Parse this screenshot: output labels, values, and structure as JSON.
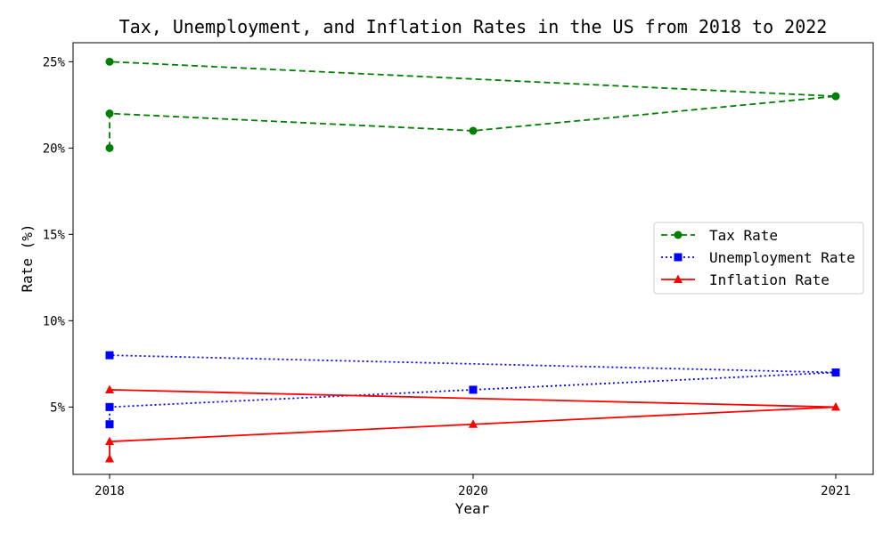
{
  "chart_data": {
    "type": "line",
    "title": "Tax, Unemployment, and Inflation Rates in the US from 2018 to 2022",
    "xlabel": "Year",
    "ylabel": "Rate (%)",
    "x_tick_labels": [
      {
        "value": 2018,
        "label": "2018"
      },
      {
        "value": 2020,
        "label": "2020"
      },
      {
        "value": 2021,
        "label": "2021"
      }
    ],
    "y_ticks": [
      5,
      10,
      15,
      20,
      25
    ],
    "y_tick_suffix": "%",
    "ylim": [
      1.1,
      26.1
    ],
    "x_positions": {
      "2018": 0,
      "2020": 1,
      "2021": 2
    },
    "grid": false,
    "legend_position": "center-right",
    "series": [
      {
        "name": "Tax Rate",
        "color": "#008000",
        "line_style": "dashed",
        "marker": "circle",
        "points": [
          {
            "x": 2018,
            "y": 20
          },
          {
            "x": 2018,
            "y": 22
          },
          {
            "x": 2020,
            "y": 21
          },
          {
            "x": 2021,
            "y": 23
          },
          {
            "x": 2018,
            "y": 25
          }
        ]
      },
      {
        "name": "Unemployment Rate",
        "color": "#0000ff",
        "line_style": "dotted",
        "marker": "square",
        "points": [
          {
            "x": 2018,
            "y": 4
          },
          {
            "x": 2018,
            "y": 5
          },
          {
            "x": 2020,
            "y": 6
          },
          {
            "x": 2021,
            "y": 7
          },
          {
            "x": 2018,
            "y": 8
          }
        ]
      },
      {
        "name": "Inflation Rate",
        "color": "#ff0000",
        "line_style": "solid",
        "marker": "triangle",
        "points": [
          {
            "x": 2018,
            "y": 2
          },
          {
            "x": 2018,
            "y": 3
          },
          {
            "x": 2020,
            "y": 4
          },
          {
            "x": 2021,
            "y": 5
          },
          {
            "x": 2018,
            "y": 6
          }
        ]
      }
    ]
  }
}
